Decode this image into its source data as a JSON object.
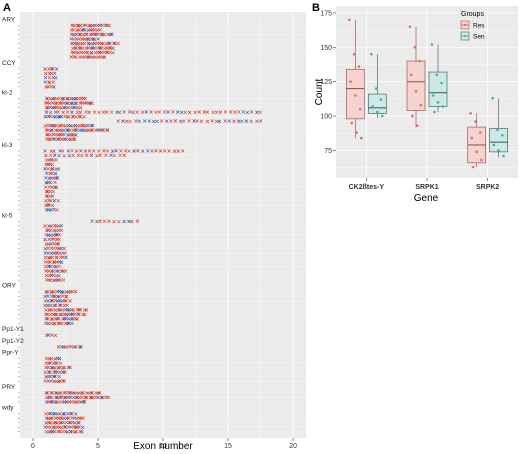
{
  "panels": {
    "a_letter": "A",
    "b_letter": "B"
  },
  "chart_data": [
    {
      "type": "scatter",
      "panel": "A",
      "xlabel": "Exon number",
      "ylabel": "",
      "xlim": [
        -1,
        21
      ],
      "x_ticks": [
        0,
        5,
        10,
        15,
        20
      ],
      "grid": true,
      "groups": [
        {
          "name": "ARY",
          "count": 8,
          "min_exon": 3,
          "max_exon": 7,
          "bold": true
        },
        {
          "name": "CCY",
          "count": 5,
          "min_exon": 1,
          "max_exon": 2,
          "bold": false
        },
        {
          "name": "kl-2",
          "count": 10,
          "min_exon": 1,
          "max_exon": 6,
          "bold": false,
          "extended": [
            {
              "row": 3,
              "min": 1,
              "max": 17.5
            },
            {
              "row": 5,
              "min": 6.5,
              "max": 17.5
            }
          ]
        },
        {
          "name": "kl-3",
          "count": 14,
          "min_exon": 1,
          "max_exon": 2,
          "bold": false,
          "extended": [
            {
              "row": 0,
              "min": 1,
              "max": 11.5
            },
            {
              "row": 1,
              "min": 1,
              "max": 7
            }
          ]
        },
        {
          "name": "kl-5",
          "count": 14,
          "min_exon": 1,
          "max_exon": 3,
          "bold": false,
          "extended": [
            {
              "row": 0,
              "min": 4.5,
              "max": 8
            }
          ]
        },
        {
          "name": "ORY",
          "count": 8,
          "min_exon": 1,
          "max_exon": 4.5,
          "bold": false
        },
        {
          "name": "Pp1-Y1",
          "count": 1,
          "min_exon": 1,
          "max_exon": 2,
          "bold": false
        },
        {
          "name": "Pp1-Y2",
          "count": 1,
          "min_exon": 2,
          "max_exon": 4,
          "bold": false
        },
        {
          "name": "Ppr-Y",
          "count": 6,
          "min_exon": 1,
          "max_exon": 3,
          "bold": false
        },
        {
          "name": "PRY",
          "count": 3,
          "min_exon": 1,
          "max_exon": 7,
          "bold": false
        },
        {
          "name": "wdy",
          "count": 5,
          "min_exon": 1,
          "max_exon": 4.5,
          "bold": false
        }
      ],
      "colors": {
        "red": "#d7301f",
        "blue": "#2c4da8"
      }
    },
    {
      "type": "box",
      "panel": "B",
      "xlabel": "Gene",
      "ylabel": "Count",
      "ylim": [
        55,
        180
      ],
      "y_ticks": [
        75,
        100,
        125,
        150,
        175
      ],
      "categories": [
        "CK2ßtes-Y",
        "SRPK1",
        "SRPK2"
      ],
      "legend": {
        "title": "Groups",
        "placement": "top-right"
      },
      "series": [
        {
          "name": "Res",
          "fill": "#f4d3d0",
          "stroke": "#a05a52",
          "point_color": "#e26d62",
          "boxes": [
            {
              "min": 84,
              "q1": 98,
              "median": 120,
              "q3": 134,
              "max": 170,
              "points": [
                170,
                145,
                136,
                125,
                115,
                105,
                95,
                88,
                84
              ]
            },
            {
              "min": 92,
              "q1": 104,
              "median": 125,
              "q3": 140,
              "max": 165,
              "points": [
                165,
                150,
                140,
                130,
                118,
                108,
                100,
                93
              ]
            },
            {
              "min": 63,
              "q1": 66,
              "median": 79,
              "q3": 92,
              "max": 102,
              "points": [
                102,
                96,
                88,
                84,
                74,
                68,
                63
              ]
            }
          ]
        },
        {
          "name": "Sen",
          "fill": "#cfe8e6",
          "stroke": "#3e6e6a",
          "point_color": "#3fb3a9",
          "boxes": [
            {
              "min": 99,
              "q1": 102,
              "median": 106,
              "q3": 116,
              "max": 145,
              "points": [
                145,
                120,
                112,
                107,
                103,
                100
              ]
            },
            {
              "min": 103,
              "q1": 107,
              "median": 117,
              "q3": 132,
              "max": 152,
              "points": [
                152,
                130,
                124,
                115,
                110,
                107,
                103
              ]
            },
            {
              "min": 70,
              "q1": 74,
              "median": 81,
              "q3": 91,
              "max": 113,
              "points": [
                113,
                90,
                86,
                79,
                75,
                71
              ]
            }
          ]
        }
      ]
    }
  ]
}
